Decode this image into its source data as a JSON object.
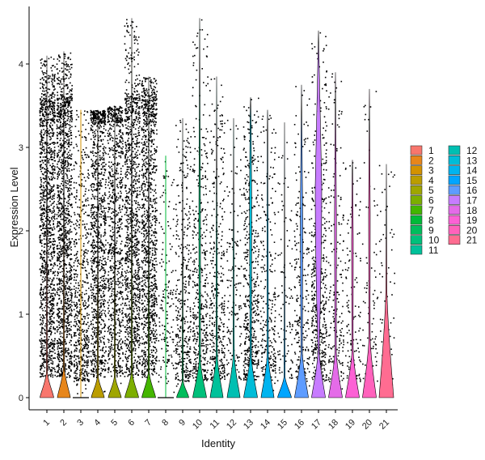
{
  "chart_data": {
    "type": "violin",
    "title": "",
    "xlabel": "Identity",
    "ylabel": "Expression Level",
    "ylim": [
      -0.2,
      4.6
    ],
    "yticks": [
      0,
      1,
      2,
      3,
      4
    ],
    "categories": [
      "1",
      "2",
      "3",
      "4",
      "5",
      "6",
      "7",
      "8",
      "9",
      "10",
      "11",
      "12",
      "13",
      "14",
      "15",
      "16",
      "17",
      "18",
      "19",
      "20",
      "21"
    ],
    "colors": [
      "#F8766D",
      "#E7861B",
      "#D39200",
      "#BB9D00",
      "#9FA600",
      "#7CAE00",
      "#44B500",
      "#00BA38",
      "#00BD5C",
      "#00C07B",
      "#00C19A",
      "#00BFB2",
      "#00BCD8",
      "#00B4EF",
      "#00A5FF",
      "#5E9CFF",
      "#C77CFF",
      "#E46BE8",
      "#FC61D5",
      "#FF62BC",
      "#FF6C91"
    ],
    "series": [
      {
        "name": "1",
        "max": 4.1,
        "body": 0.3,
        "peak_width": 0.85,
        "bulge_top": 0.0,
        "bulge_width": 0.0
      },
      {
        "name": "2",
        "max": 4.15,
        "body": 0.35,
        "peak_width": 0.8,
        "bulge_top": 0.0,
        "bulge_width": 0.0
      },
      {
        "name": "3",
        "max": 3.45,
        "body": 0.0,
        "peak_width": 0.0,
        "bulge_top": 0.0,
        "bulge_width": 0.0
      },
      {
        "name": "4",
        "max": 3.45,
        "body": 0.25,
        "peak_width": 0.8,
        "bulge_top": 0.0,
        "bulge_width": 0.0
      },
      {
        "name": "5",
        "max": 3.5,
        "body": 0.25,
        "peak_width": 0.8,
        "bulge_top": 0.0,
        "bulge_width": 0.0
      },
      {
        "name": "6",
        "max": 4.55,
        "body": 0.3,
        "peak_width": 0.85,
        "bulge_top": 0.0,
        "bulge_width": 0.0
      },
      {
        "name": "7",
        "max": 3.85,
        "body": 0.3,
        "peak_width": 0.85,
        "bulge_top": 0.0,
        "bulge_width": 0.0
      },
      {
        "name": "8",
        "max": 2.9,
        "body": 0.0,
        "peak_width": 0.0,
        "bulge_top": 0.0,
        "bulge_width": 0.0
      },
      {
        "name": "9",
        "max": 3.35,
        "body": 0.2,
        "peak_width": 0.75,
        "bulge_top": 0.0,
        "bulge_width": 0.0
      },
      {
        "name": "10",
        "max": 4.55,
        "body": 0.45,
        "peak_width": 0.85,
        "bulge_top": 3.0,
        "bulge_width": 0.1
      },
      {
        "name": "11",
        "max": 3.85,
        "body": 0.5,
        "peak_width": 0.8,
        "bulge_top": 2.2,
        "bulge_width": 0.06
      },
      {
        "name": "12",
        "max": 3.35,
        "body": 0.5,
        "peak_width": 0.8,
        "bulge_top": 2.4,
        "bulge_width": 0.05
      },
      {
        "name": "13",
        "max": 3.6,
        "body": 0.5,
        "peak_width": 0.85,
        "bulge_top": 3.4,
        "bulge_width": 0.14
      },
      {
        "name": "14",
        "max": 3.45,
        "body": 0.5,
        "peak_width": 0.8,
        "bulge_top": 2.9,
        "bulge_width": 0.06
      },
      {
        "name": "15",
        "max": 3.3,
        "body": 0.25,
        "peak_width": 0.85,
        "bulge_top": 0.0,
        "bulge_width": 0.0
      },
      {
        "name": "16",
        "max": 3.75,
        "body": 0.55,
        "peak_width": 0.85,
        "bulge_top": 3.0,
        "bulge_width": 0.15
      },
      {
        "name": "17",
        "max": 4.4,
        "body": 0.55,
        "peak_width": 0.85,
        "bulge_top": 3.6,
        "bulge_width": 0.4
      },
      {
        "name": "18",
        "max": 3.9,
        "body": 0.55,
        "peak_width": 0.85,
        "bulge_top": 3.0,
        "bulge_width": 0.12
      },
      {
        "name": "19",
        "max": 2.85,
        "body": 0.55,
        "peak_width": 0.85,
        "bulge_top": 2.6,
        "bulge_width": 0.1
      },
      {
        "name": "20",
        "max": 3.7,
        "body": 0.7,
        "peak_width": 0.85,
        "bulge_top": 3.0,
        "bulge_width": 0.1
      },
      {
        "name": "21",
        "max": 2.8,
        "body": 1.3,
        "peak_width": 0.9,
        "bulge_top": 0.0,
        "bulge_width": 0.0
      }
    ],
    "point_density": [
      1.0,
      1.0,
      0.45,
      0.8,
      0.65,
      0.85,
      0.85,
      0.12,
      0.3,
      0.35,
      0.3,
      0.12,
      0.4,
      0.2,
      0.08,
      0.18,
      0.4,
      0.16,
      0.1,
      0.07,
      0.05
    ],
    "grid": false,
    "legend_position": "right"
  }
}
